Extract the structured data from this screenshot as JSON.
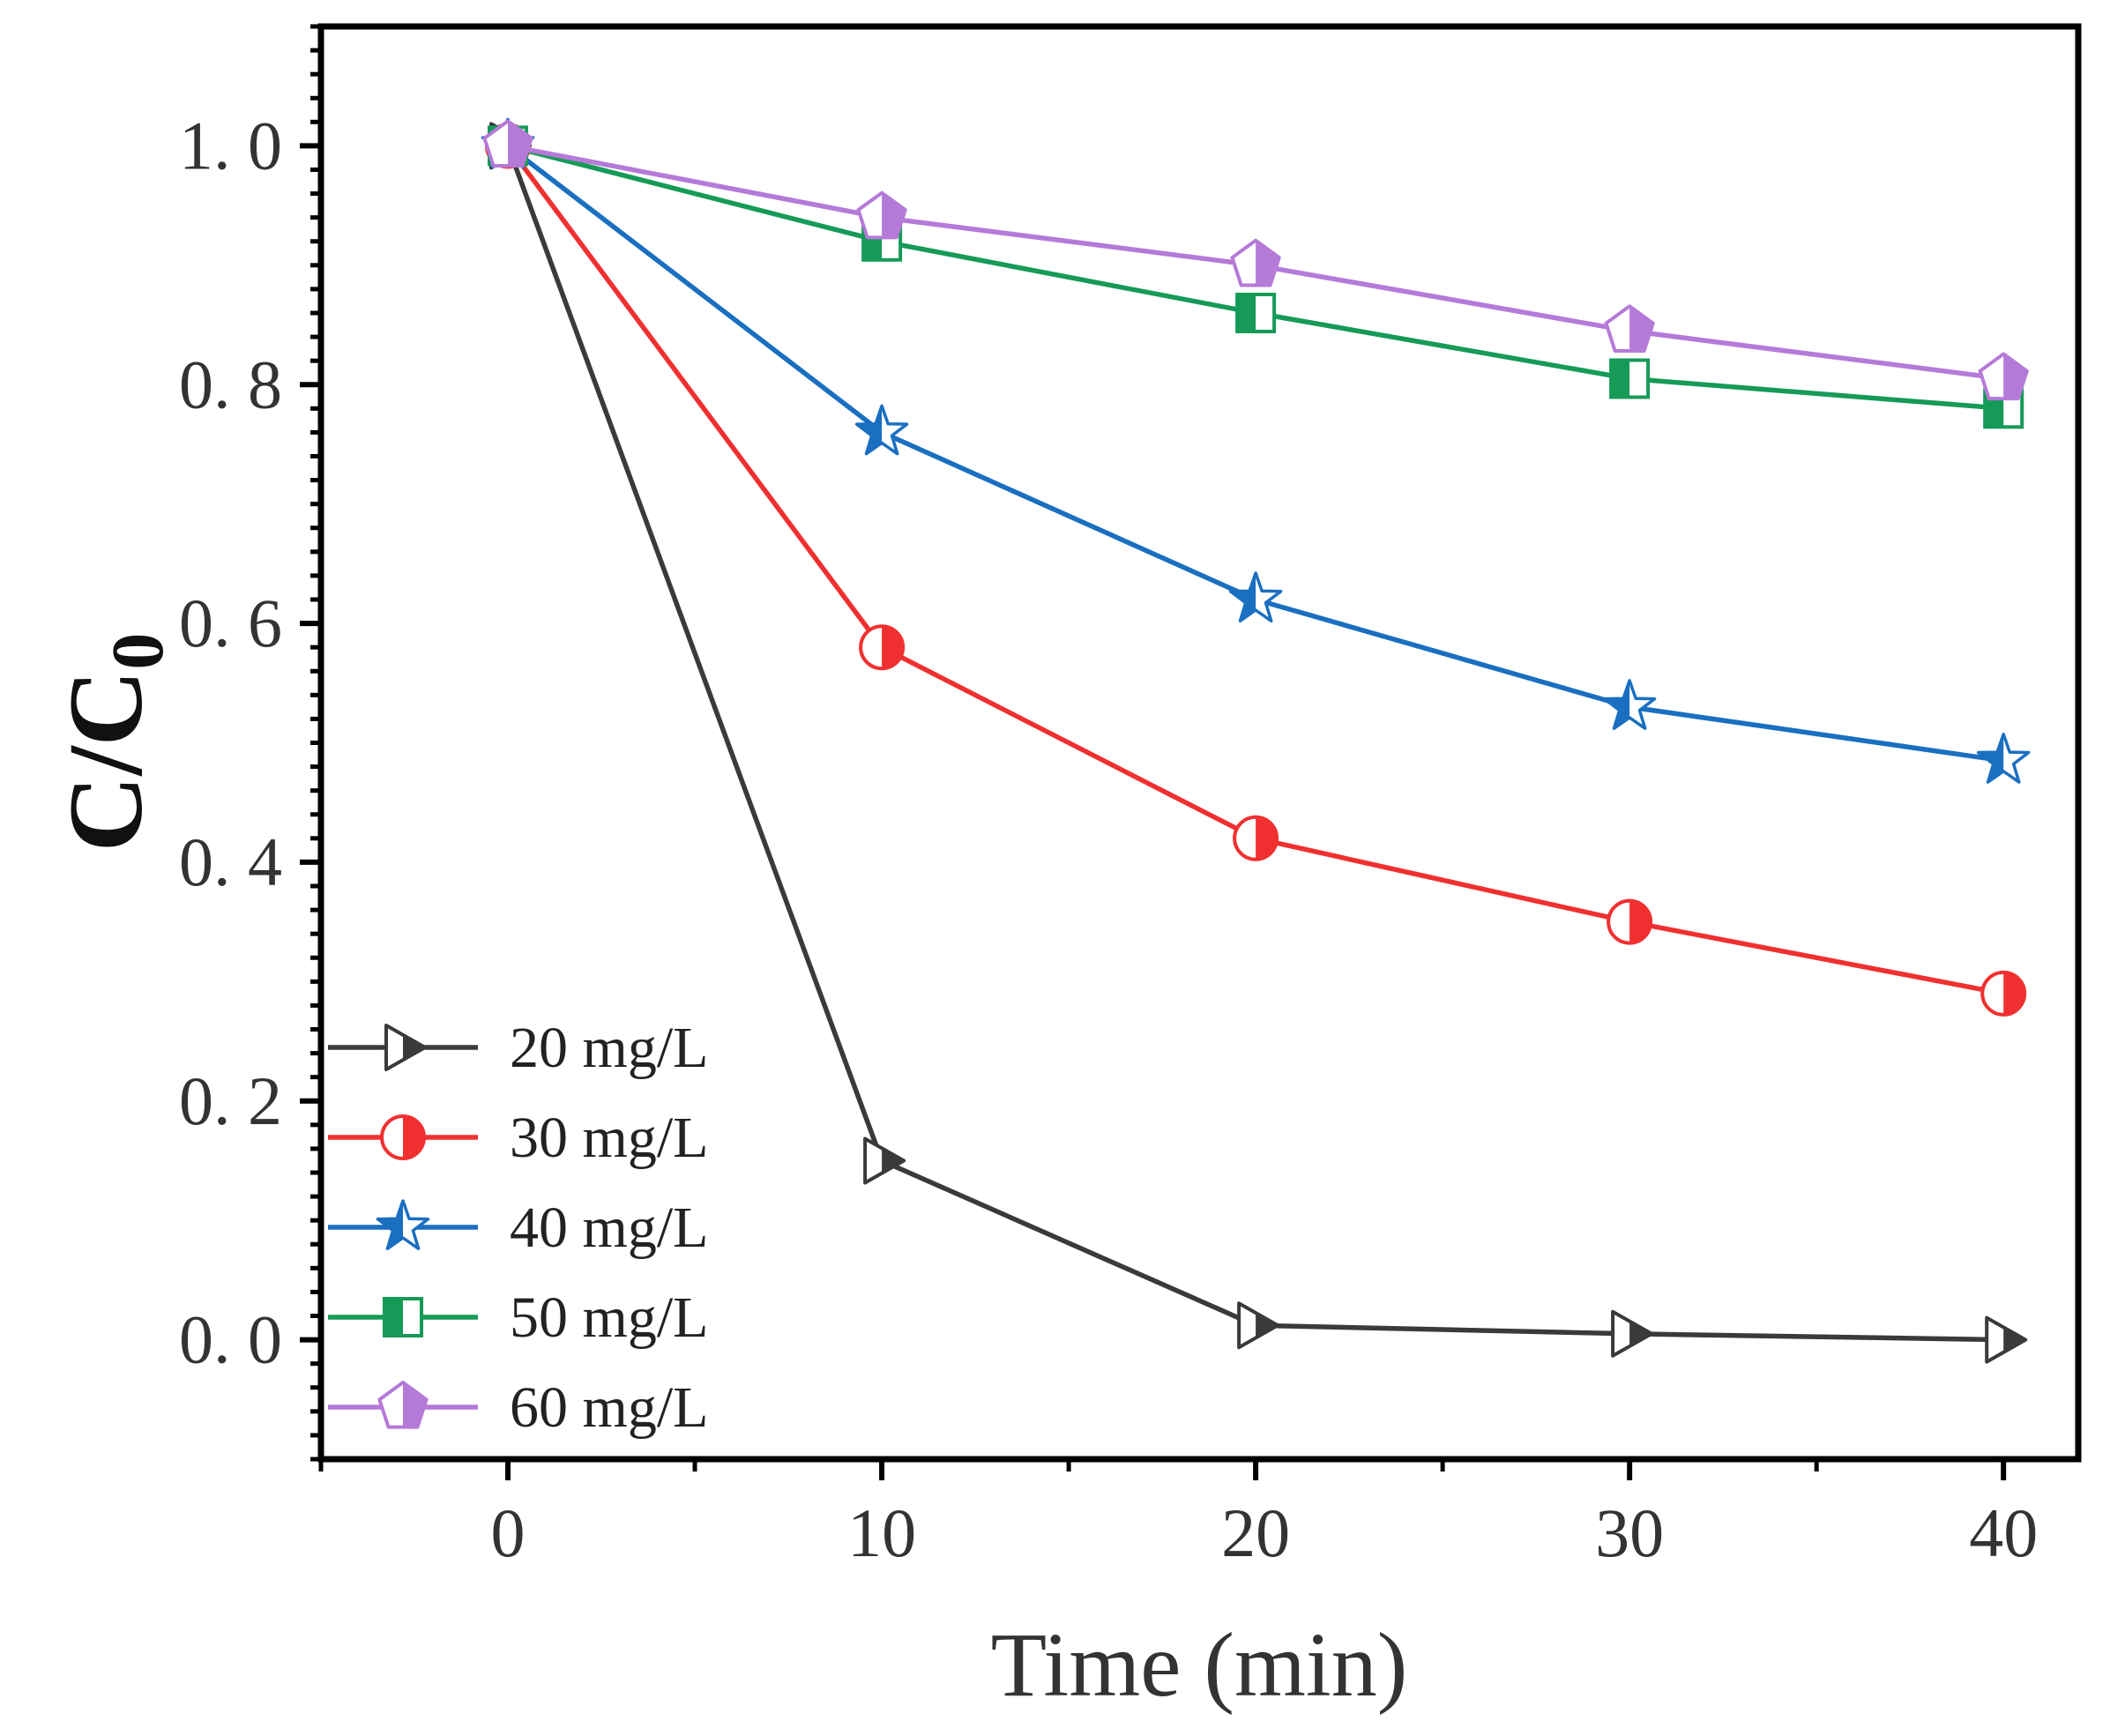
{
  "chart_data": {
    "type": "line",
    "xlabel": "Time (min)",
    "ylabel": "C/C",
    "ylabel_subscript": "0",
    "xlim": [
      -5,
      42
    ],
    "ylim": [
      -0.1,
      1.1
    ],
    "xticks": [
      0,
      10,
      20,
      30,
      40
    ],
    "xtick_labels": [
      "0",
      "10",
      "20",
      "30",
      "40"
    ],
    "yticks": [
      0.0,
      0.2,
      0.4,
      0.6,
      0.8,
      1.0
    ],
    "ytick_labels": [
      "0. 0",
      "0. 2",
      "0. 4",
      "0. 6",
      "0. 8",
      "1. 0"
    ],
    "grid": false,
    "legend_position": "bottom-left",
    "x": [
      0,
      10,
      20,
      30,
      40
    ],
    "series": [
      {
        "name": "20 mg/L",
        "color": "#3a3a3a",
        "marker": "triangle-right-half",
        "values": [
          1.0,
          0.15,
          0.012,
          0.005,
          0.0
        ]
      },
      {
        "name": "30 mg/L",
        "color": "#f03030",
        "marker": "circle-half",
        "values": [
          1.0,
          0.58,
          0.42,
          0.35,
          0.29
        ]
      },
      {
        "name": "40 mg/L",
        "color": "#1a6fc0",
        "marker": "star",
        "values": [
          1.0,
          0.76,
          0.62,
          0.53,
          0.485
        ]
      },
      {
        "name": "50 mg/L",
        "color": "#169a58",
        "marker": "square-half",
        "values": [
          1.0,
          0.92,
          0.86,
          0.805,
          0.78
        ]
      },
      {
        "name": "60 mg/L",
        "color": "#b57ad8",
        "marker": "pentagon-half",
        "values": [
          1.0,
          0.94,
          0.9,
          0.845,
          0.805
        ]
      }
    ]
  }
}
